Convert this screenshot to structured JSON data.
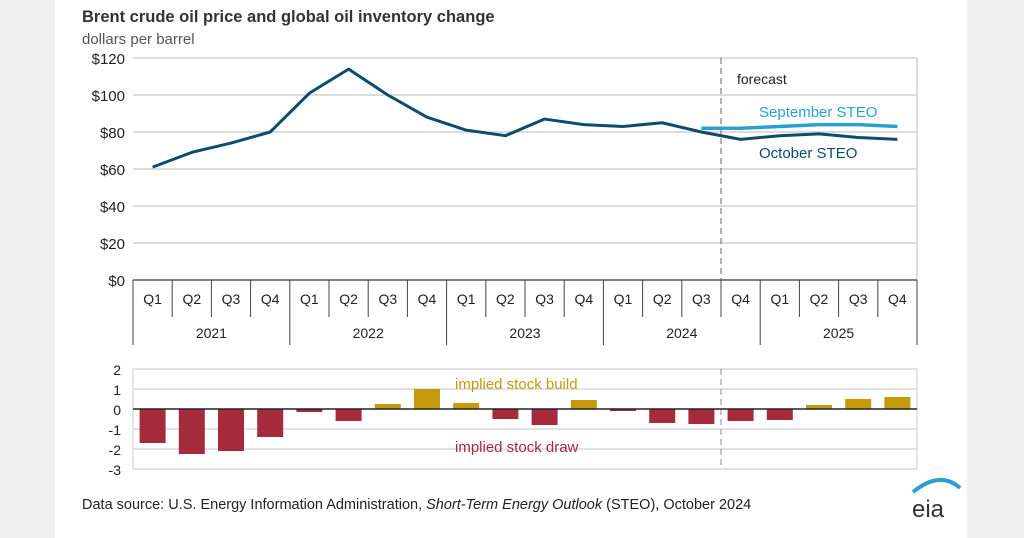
{
  "chart_data": [
    {
      "type": "line",
      "title": "Brent crude oil price and global oil inventory change",
      "ylabel": "dollars per barrel",
      "ylim": [
        0,
        120
      ],
      "yticks": [
        "$0",
        "$20",
        "$40",
        "$60",
        "$80",
        "$100",
        "$120"
      ],
      "ytick_values": [
        0,
        20,
        40,
        60,
        80,
        100,
        120
      ],
      "quarters": [
        "Q1",
        "Q2",
        "Q3",
        "Q4",
        "Q1",
        "Q2",
        "Q3",
        "Q4",
        "Q1",
        "Q2",
        "Q3",
        "Q4",
        "Q1",
        "Q2",
        "Q3",
        "Q4",
        "Q1",
        "Q2",
        "Q3",
        "Q4"
      ],
      "years": [
        "2021",
        "2022",
        "2023",
        "2024",
        "2025"
      ],
      "forecast_label": "forecast",
      "forecast_start_index": 15,
      "series": [
        {
          "name": "October STEO",
          "color": "#0f4b6b",
          "start_index": 0,
          "values": [
            61,
            69,
            74,
            80,
            101,
            114,
            100,
            88,
            81,
            78,
            87,
            84,
            83,
            85,
            80,
            76,
            78,
            79,
            77,
            76
          ]
        },
        {
          "name": "September STEO",
          "color": "#2aa0cf",
          "start_index": 14,
          "values": [
            82,
            82,
            83,
            84,
            84,
            83
          ]
        }
      ],
      "grid": true
    },
    {
      "type": "bar",
      "ylim": [
        -3,
        2
      ],
      "yticks": [
        "-3",
        "-2",
        "-1",
        "0",
        "1",
        "2"
      ],
      "ytick_values": [
        -3,
        -2,
        -1,
        0,
        1,
        2
      ],
      "values": [
        -1.7,
        -2.25,
        -2.1,
        -1.4,
        -0.15,
        -0.6,
        0.25,
        1.0,
        0.3,
        -0.5,
        -0.8,
        0.45,
        -0.1,
        -0.7,
        -0.75,
        -0.6,
        -0.55,
        0.2,
        0.5,
        0.6
      ],
      "annotations": {
        "build": "implied stock  build",
        "draw": "implied stock draw"
      },
      "colors": {
        "build": "#c49a0b",
        "draw": "#a52a3c"
      }
    }
  ],
  "source": {
    "prefix": "Data source: U.S. Energy Information Administration, ",
    "italic": "Short-Term Energy Outlook",
    "suffix": " (STEO), October 2024"
  },
  "logo": "eia"
}
